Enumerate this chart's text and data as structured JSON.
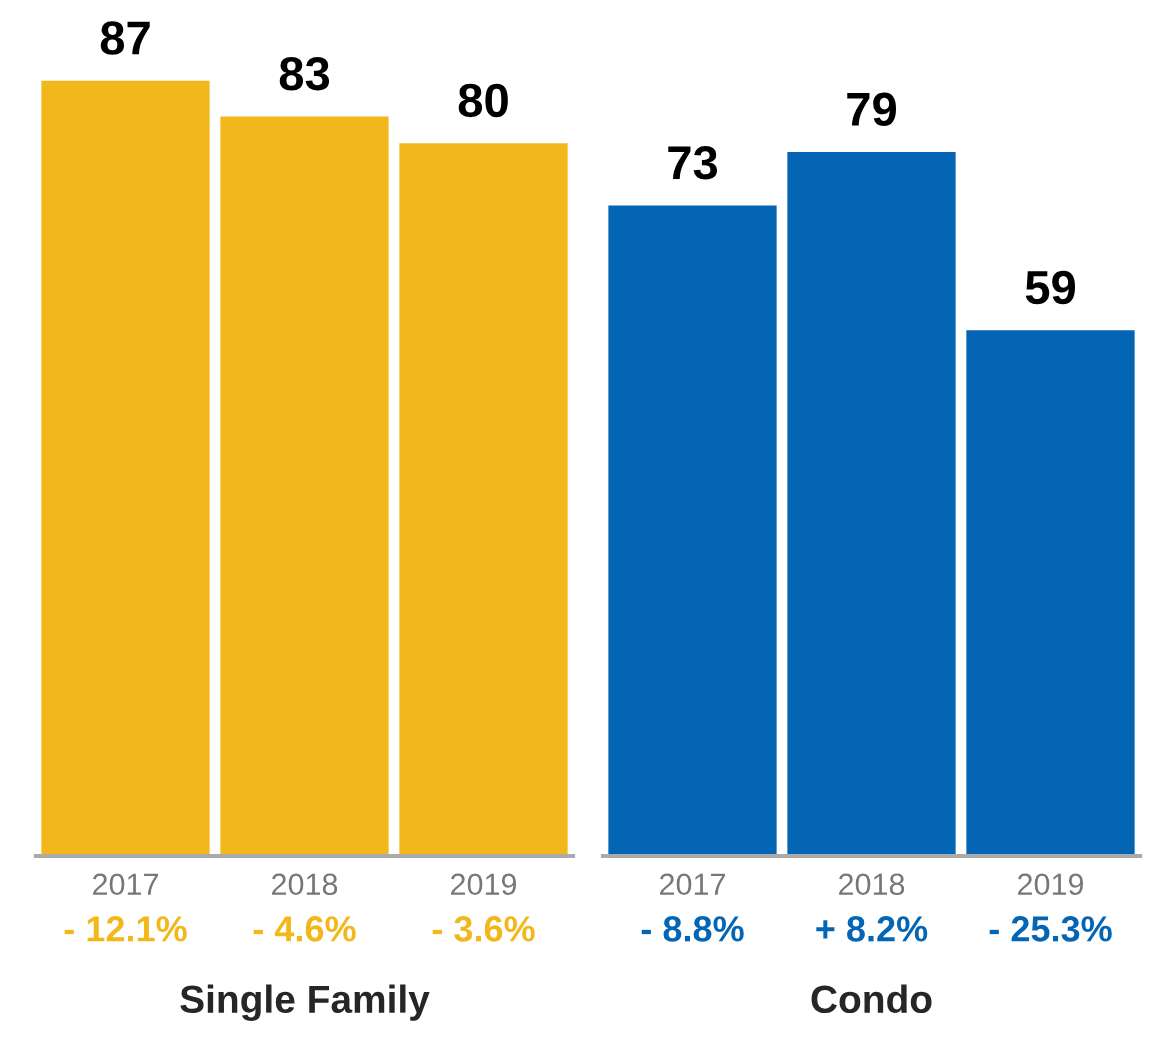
{
  "chart_data": [
    {
      "type": "bar",
      "categories": [
        "2017",
        "2018",
        "2019"
      ],
      "values": [
        87,
        83,
        80
      ],
      "color": "#f2b71b",
      "data_labels": true,
      "xlabel": "Single Family",
      "annotations": [
        "- 12.1%",
        "- 4.6%",
        "- 3.6%"
      ],
      "grid": false,
      "legend": false
    },
    {
      "type": "bar",
      "categories": [
        "2017",
        "2018",
        "2019"
      ],
      "values": [
        73,
        79,
        59
      ],
      "color": "#0465b4",
      "data_labels": true,
      "xlabel": "Condo",
      "annotations": [
        "- 8.8%",
        "+ 8.2%",
        "- 25.3%"
      ],
      "grid": false,
      "legend": false
    }
  ]
}
